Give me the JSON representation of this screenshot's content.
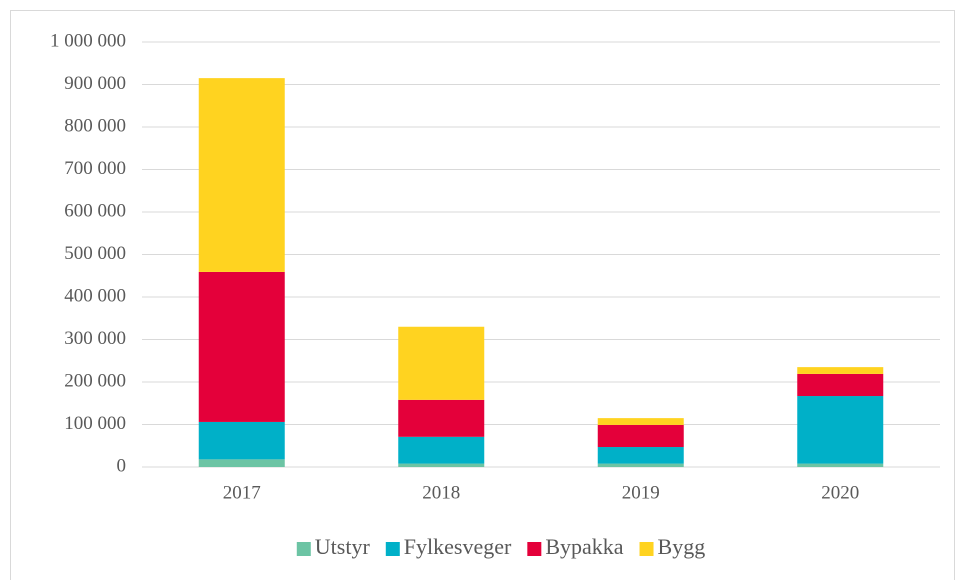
{
  "chart_data": {
    "type": "stacked_bar",
    "categories": [
      "2017",
      "2018",
      "2019",
      "2020"
    ],
    "series": [
      {
        "name": "Utstyr",
        "color": "#6cc4a4",
        "values": [
          18000,
          8000,
          8000,
          8000
        ]
      },
      {
        "name": "Fylkesveger",
        "color": "#00b0c8",
        "values": [
          88000,
          63000,
          39000,
          159000
        ]
      },
      {
        "name": "Bypakka",
        "color": "#e4003a",
        "values": [
          353000,
          87000,
          52000,
          52000
        ]
      },
      {
        "name": "Bygg",
        "color": "#ffd320",
        "values": [
          456000,
          172000,
          16000,
          16000
        ]
      }
    ],
    "ylim": [
      0,
      1000000
    ],
    "yticks": [
      0,
      {
        "value": 100000,
        "label": "100 000"
      },
      {
        "value": 200000,
        "label": "200 000"
      },
      {
        "value": 300000,
        "label": "300 000"
      },
      {
        "value": 400000,
        "label": "400 000"
      },
      {
        "value": 500000,
        "label": "500 000"
      },
      {
        "value": 600000,
        "label": "600 000"
      },
      {
        "value": 700000,
        "label": "700 000"
      },
      {
        "value": 800000,
        "label": "800 000"
      },
      {
        "value": 900000,
        "label": "900 000"
      },
      {
        "value": 1000000,
        "label": "1 000 000"
      }
    ],
    "grid": true,
    "legend": "bottom"
  }
}
